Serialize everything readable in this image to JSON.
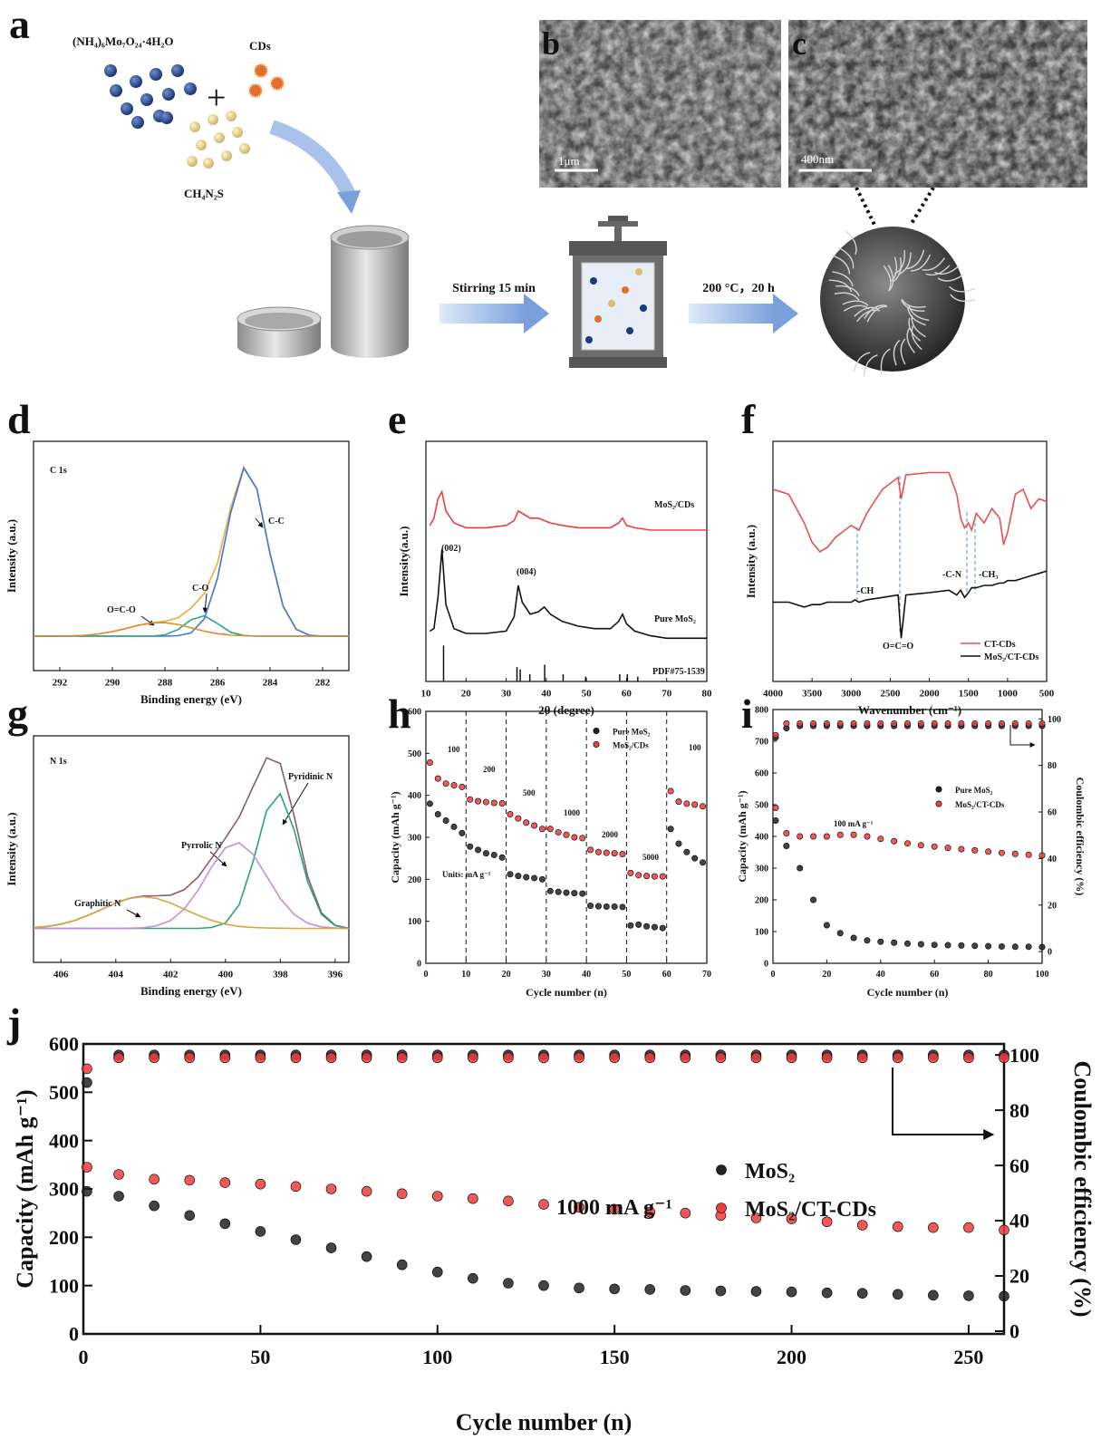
{
  "schematic": {
    "panel": "a",
    "precursor": "(NH₄)₆Mo₇O₂₄·4H₂O",
    "plus": "+",
    "cds": "CDs",
    "thiourea": "CH₄N₂S",
    "step1": "Stirring 15 min",
    "step2": "200 °C，20 h",
    "image_b": "b",
    "image_c": "c",
    "scale_b": "1μm",
    "scale_c": "400nm"
  },
  "chart_data": [
    {
      "type": "line",
      "panel": "d",
      "xlabel": "Binding energy (eV)",
      "ylabel": "Intensity (a.u.)",
      "xlim": [
        293,
        281
      ],
      "ylim": [
        0,
        100
      ],
      "xticks": [
        292,
        290,
        288,
        286,
        284,
        282
      ],
      "legend": "inline",
      "annotations": [
        "C 1s"
      ],
      "x": [
        293,
        292.5,
        292,
        291.5,
        291,
        290.5,
        290,
        289.5,
        289,
        288.5,
        288,
        287.5,
        287,
        286.5,
        286,
        285.5,
        285,
        284.5,
        284,
        283.5,
        283,
        282.5,
        282,
        281.5,
        281
      ],
      "series": [
        {
          "color": "#f2a93b",
          "values": [
            15,
            15,
            15,
            15.1,
            15.4,
            16,
            17,
            18.3,
            19.8,
            20.8,
            21.5,
            23,
            27.3,
            33.7,
            46.8,
            70.9,
            88.8,
            79.2,
            51,
            28,
            18,
            15.4,
            15,
            15,
            15
          ]
        },
        {
          "name": "C-C",
          "color": "#3b78d8",
          "values": [
            15,
            15,
            15,
            15,
            15,
            15,
            15,
            15,
            15,
            15,
            15,
            15.2,
            16.5,
            22.6,
            40.2,
            68.7,
            88.3,
            79.2,
            51,
            28,
            18,
            15.4,
            15,
            15,
            15
          ]
        },
        {
          "name": "C-O",
          "color": "#2ca58d",
          "values": [
            15,
            15,
            15,
            15,
            15,
            15,
            15,
            15,
            15,
            15,
            15.6,
            17.9,
            22.2,
            23.9,
            20.5,
            16.7,
            15.3,
            15,
            15,
            15,
            15,
            15,
            15,
            15,
            15
          ]
        },
        {
          "name": "O=C-O",
          "color": "#d98b2b",
          "values": [
            15,
            15,
            15,
            15.1,
            15.4,
            16,
            17,
            18.3,
            19.8,
            20.8,
            20.9,
            20.1,
            18.6,
            17.2,
            16.1,
            15.5,
            15.2,
            15,
            15,
            15,
            15,
            15,
            15,
            15,
            15
          ]
        }
      ]
    },
    {
      "type": "line",
      "panel": "e",
      "xlabel": "2θ (degree)",
      "ylabel": "Intensity(a.u.)",
      "xlim": [
        10,
        80
      ],
      "ylim": [
        0,
        100
      ],
      "xticks": [
        10,
        20,
        30,
        40,
        50,
        60,
        70,
        80
      ],
      "legend": "inline",
      "annotations": [
        "(002)",
        "(004)"
      ],
      "x": [
        11,
        12,
        13,
        14,
        15,
        17,
        20,
        25,
        30,
        32,
        33,
        34,
        36,
        38,
        39.5,
        41,
        44,
        48,
        52,
        56,
        58,
        59,
        60,
        62,
        66,
        70,
        75,
        80
      ],
      "series": [
        {
          "name": "MoS₂/CDs",
          "color": "#f03c3c",
          "values": [
            65,
            68,
            76,
            79,
            71,
            66,
            64,
            64,
            65,
            67,
            71,
            70,
            68,
            68,
            67,
            66,
            65,
            64,
            64,
            64,
            66,
            68,
            65,
            64,
            63,
            63,
            63,
            63
          ]
        },
        {
          "name": "Pure MoS₂",
          "color": "#111111",
          "values": [
            21,
            22,
            35,
            55,
            32,
            22,
            20,
            20,
            21,
            27,
            40,
            33,
            28,
            29,
            31,
            28,
            25,
            23,
            22,
            22,
            25,
            28,
            24,
            21,
            19,
            18,
            18,
            18
          ]
        },
        {
          "name": "PDF#75-1539",
          "color": "#111111",
          "mark": "stick",
          "x": [
            14.4,
            32.7,
            33.5,
            35.9,
            39.6,
            44.2,
            49.8,
            58.3,
            60.2,
            62.8
          ],
          "values": [
            15,
            6,
            5,
            3,
            7,
            3,
            2,
            3,
            3,
            2
          ]
        }
      ]
    },
    {
      "type": "line",
      "panel": "f",
      "xlabel": "Wavenumber (cm⁻¹)",
      "ylabel": "Intensity (a.u.)",
      "xlim": [
        4000,
        500
      ],
      "ylim": [
        0,
        100
      ],
      "xticks": [
        4000,
        3500,
        3000,
        2500,
        2000,
        1500,
        1000,
        500
      ],
      "legend": "lower right",
      "annotations": [
        "-CH",
        "O=C=O",
        "-C-N",
        "-CH₃"
      ],
      "x": [
        4000,
        3800,
        3600,
        3500,
        3400,
        3300,
        3200,
        3000,
        2950,
        2900,
        2800,
        2600,
        2400,
        2360,
        2300,
        2000,
        1750,
        1650,
        1600,
        1550,
        1500,
        1460,
        1400,
        1300,
        1200,
        1100,
        1050,
        1000,
        900,
        800,
        700,
        600,
        500
      ],
      "series": [
        {
          "name": "CT-CDs",
          "color": "#e8504f",
          "values": [
            80,
            78,
            66,
            58,
            54,
            56,
            60,
            65,
            64,
            63,
            70,
            80,
            85,
            76,
            86,
            87,
            87,
            78,
            68,
            64,
            66,
            63,
            70,
            66,
            72,
            68,
            57,
            62,
            78,
            80,
            72,
            76,
            75
          ]
        },
        {
          "name": "MoS₂/CT-CDs",
          "color": "#111111",
          "values": [
            33,
            33,
            31,
            32,
            32,
            33,
            33,
            33,
            34,
            33,
            34,
            35,
            36,
            18,
            36,
            37,
            38,
            36,
            38,
            35,
            37,
            39,
            39,
            40,
            40,
            41,
            41,
            42,
            42,
            43,
            44,
            45,
            46
          ]
        }
      ]
    },
    {
      "type": "line",
      "panel": "g",
      "xlabel": "Binding energy (eV)",
      "ylabel": "Intensity (a.u.)",
      "xlim": [
        407,
        395.5
      ],
      "ylim": [
        0,
        100
      ],
      "xticks": [
        406,
        404,
        402,
        400,
        398,
        396
      ],
      "legend": "inline",
      "annotations": [
        "N 1s"
      ],
      "x": [
        407,
        406.5,
        406,
        405.5,
        405,
        404.5,
        404,
        403.5,
        403,
        402.5,
        402,
        401.5,
        401,
        400.5,
        400,
        399.5,
        399,
        398.5,
        398,
        397.5,
        397,
        396.5,
        396,
        395.5
      ],
      "series": [
        {
          "color": "#8c5a6a",
          "values": [
            15.4,
            15.9,
            16.9,
            18.5,
            20.8,
            23.5,
            26.2,
            28.3,
            29.3,
            29.4,
            29.7,
            32.1,
            37.7,
            46.1,
            54.9,
            64.2,
            77.4,
            90.3,
            87.8,
            64.8,
            37.8,
            21.9,
            16.4,
            15.1
          ]
        },
        {
          "name": "Pyridinic N",
          "color": "#27a572",
          "values": [
            15,
            15,
            15,
            15,
            15,
            15,
            15,
            15,
            15,
            15,
            15,
            15,
            15,
            15.4,
            17.4,
            25.5,
            44.2,
            67,
            74.5,
            58.6,
            35.5,
            21.2,
            16.2,
            15.1
          ]
        },
        {
          "name": "Pyrrolic N",
          "color": "#c58be0",
          "values": [
            15,
            15,
            15,
            15,
            15,
            15,
            15,
            15.1,
            15.3,
            16.2,
            18.5,
            23.6,
            31.9,
            42.2,
            50.6,
            52.8,
            47.8,
            38.1,
            28.2,
            21.2,
            17.3,
            15.7,
            15.2,
            15
          ]
        },
        {
          "name": "Graphitic N",
          "color": "#d9a43a",
          "values": [
            15.4,
            15.9,
            16.9,
            18.5,
            20.8,
            23.5,
            26.2,
            28.2,
            29,
            28.2,
            26.2,
            23.5,
            20.8,
            18.5,
            16.9,
            15.9,
            15.4,
            15.2,
            15.1,
            15,
            15,
            15,
            15,
            15
          ]
        }
      ]
    },
    {
      "type": "scatter",
      "panel": "h",
      "xlabel": "Cycle number (n)",
      "ylabel": "Capacity (mAh g⁻¹)",
      "xlim": [
        0,
        70
      ],
      "ylim": [
        0,
        600
      ],
      "xticks": [
        0,
        10,
        20,
        30,
        40,
        50,
        60,
        70
      ],
      "yticks": [
        0,
        100,
        200,
        300,
        400,
        500,
        600
      ],
      "legend": "upper right",
      "annotations": [
        "100",
        "200",
        "500",
        "1000",
        "2000",
        "5000",
        "100",
        "Units: mA g⁻¹"
      ],
      "x": [
        1,
        3,
        5,
        7,
        9,
        11,
        13,
        15,
        17,
        19,
        21,
        23,
        25,
        27,
        29,
        31,
        33,
        35,
        37,
        39,
        41,
        43,
        45,
        47,
        49,
        51,
        53,
        55,
        57,
        59,
        61,
        63,
        65,
        67,
        69
      ],
      "series": [
        {
          "name": "Pure MoS₂",
          "color": "#222222",
          "values": [
            380,
            355,
            340,
            325,
            310,
            278,
            270,
            262,
            258,
            252,
            212,
            208,
            205,
            203,
            200,
            172,
            170,
            168,
            167,
            166,
            137,
            136,
            135,
            135,
            134,
            90,
            92,
            88,
            86,
            84,
            320,
            285,
            265,
            250,
            240
          ]
        },
        {
          "name": "MoS₂/CDs",
          "color": "#ee3b3b",
          "values": [
            478,
            440,
            428,
            424,
            420,
            390,
            386,
            384,
            382,
            381,
            355,
            345,
            335,
            328,
            320,
            320,
            312,
            306,
            300,
            298,
            270,
            265,
            263,
            262,
            260,
            215,
            210,
            208,
            207,
            207,
            410,
            385,
            380,
            378,
            374
          ]
        }
      ]
    },
    {
      "type": "scatter",
      "panel": "i",
      "xlabel": "Cycle number (n)",
      "ylabel": "Capacity (mAh g⁻¹)",
      "y2label": "Coulombic efficiency (%)",
      "xlim": [
        0,
        100
      ],
      "ylim": [
        0,
        800
      ],
      "y2lim": [
        -5,
        104
      ],
      "xticks": [
        0,
        20,
        40,
        60,
        80,
        100
      ],
      "yticks": [
        0,
        100,
        200,
        300,
        400,
        500,
        600,
        700,
        800
      ],
      "y2ticks": [
        0,
        20,
        40,
        60,
        80,
        100
      ],
      "legend": "upper right",
      "annotations": [
        "100 mA g⁻¹"
      ],
      "x": [
        1,
        5,
        10,
        15,
        20,
        25,
        30,
        35,
        40,
        45,
        50,
        55,
        60,
        65,
        70,
        75,
        80,
        85,
        90,
        95,
        100
      ],
      "series": [
        {
          "name": "Pure MoS₂",
          "color": "#222222",
          "values": [
            450,
            370,
            300,
            200,
            120,
            95,
            80,
            72,
            68,
            65,
            62,
            60,
            58,
            57,
            56,
            55,
            54,
            53,
            52,
            52,
            51
          ]
        },
        {
          "name": "MoS₂/CT-CDs",
          "color": "#ee3b3b",
          "values": [
            490,
            410,
            400,
            400,
            400,
            405,
            405,
            400,
            392,
            385,
            378,
            372,
            368,
            364,
            360,
            356,
            352,
            348,
            345,
            342,
            340
          ]
        },
        {
          "color": "#222222",
          "axis": "y2",
          "values": [
            92,
            96,
            97,
            97,
            97,
            97,
            97,
            97,
            97,
            97,
            97,
            97,
            97,
            97,
            97,
            97,
            97,
            97,
            97,
            97,
            97
          ]
        },
        {
          "color": "#ee3b3b",
          "axis": "y2",
          "values": [
            93,
            98,
            98,
            98,
            98,
            98,
            98,
            98,
            98,
            98,
            98,
            98,
            98,
            98,
            98,
            98,
            98,
            98,
            98,
            98,
            98
          ]
        }
      ]
    },
    {
      "type": "scatter",
      "panel": "j",
      "xlabel": "Cycle number (n)",
      "ylabel": "Capacity (mAh g⁻¹)",
      "y2label": "Coulombic efficiency (%)",
      "xlim": [
        0,
        260
      ],
      "ylim": [
        0,
        600
      ],
      "y2lim": [
        -1,
        104
      ],
      "xticks": [
        0,
        50,
        100,
        150,
        200,
        250
      ],
      "yticks": [
        0,
        100,
        200,
        300,
        400,
        500,
        600
      ],
      "y2ticks": [
        0,
        20,
        40,
        60,
        80,
        100
      ],
      "legend": "center right",
      "annotations": [
        "1000 mA g⁻¹"
      ],
      "x": [
        1,
        10,
        20,
        30,
        40,
        50,
        60,
        70,
        80,
        90,
        100,
        110,
        120,
        130,
        140,
        150,
        160,
        170,
        180,
        190,
        200,
        210,
        220,
        230,
        240,
        250,
        260
      ],
      "series": [
        {
          "name": "MoS₂",
          "color": "#222222",
          "values": [
            295,
            285,
            265,
            245,
            228,
            212,
            195,
            178,
            160,
            143,
            128,
            115,
            105,
            100,
            95,
            93,
            92,
            90,
            89,
            88,
            87,
            85,
            84,
            82,
            80,
            79,
            78
          ]
        },
        {
          "name": "MoS₂/CT-CDs",
          "color": "#ee3b3b",
          "values": [
            345,
            330,
            320,
            318,
            313,
            310,
            305,
            300,
            295,
            290,
            285,
            280,
            275,
            268,
            262,
            258,
            252,
            250,
            245,
            240,
            238,
            232,
            225,
            222,
            220,
            220,
            215
          ]
        },
        {
          "color": "#222222",
          "axis": "y2",
          "values": [
            90,
            100,
            100,
            100,
            100,
            100,
            100,
            100,
            100,
            100,
            100,
            100,
            100,
            100,
            100,
            100,
            100,
            100,
            100,
            100,
            100,
            100,
            100,
            100,
            100,
            100,
            100
          ]
        },
        {
          "color": "#ee3b3b",
          "axis": "y2",
          "values": [
            95,
            99,
            99,
            99,
            99,
            99,
            99,
            99,
            99,
            99,
            99,
            99,
            99,
            99,
            99,
            99,
            99,
            99,
            99,
            99,
            99,
            99,
            99,
            99,
            99,
            99,
            99
          ]
        }
      ]
    }
  ]
}
